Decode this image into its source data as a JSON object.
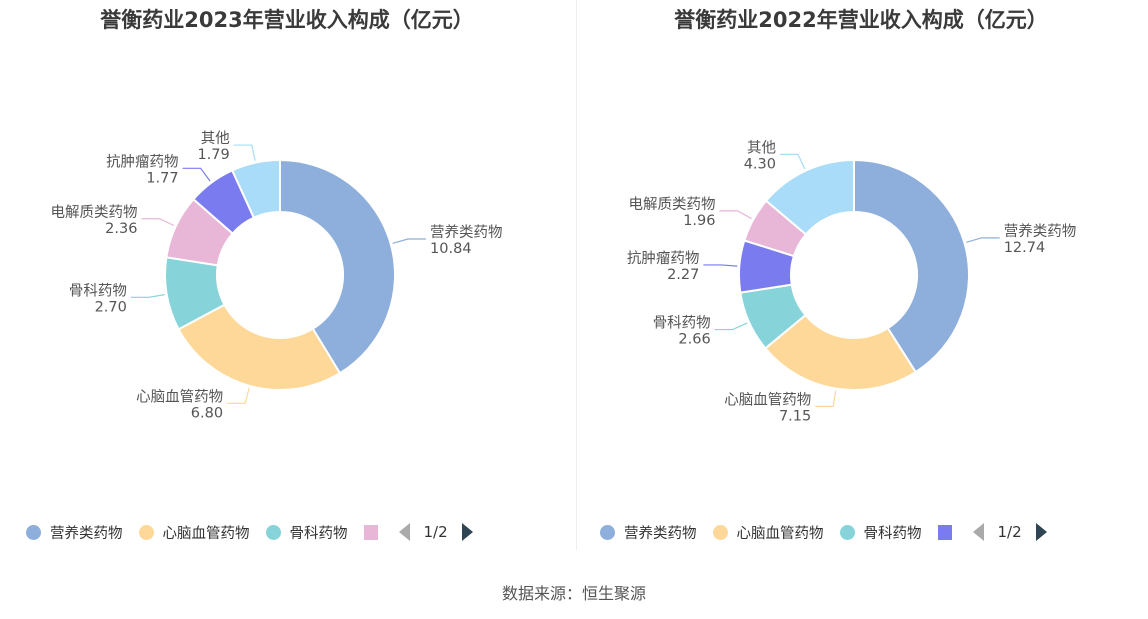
{
  "charts": [
    {
      "title": "誉衡药业2023年营业收入构成（亿元）",
      "legend_items": [
        "营养类药物",
        "心脑血管药物",
        "骨科药物"
      ],
      "legend_partial_color": "#e8b6d6",
      "legend_page": "1/2"
    },
    {
      "title": "誉衡药业2022年营业收入构成（亿元）",
      "legend_items": [
        "营养类药物",
        "心脑血管药物",
        "骨科药物"
      ],
      "legend_partial_color": "#7b7bf0",
      "legend_page": "1/2"
    }
  ],
  "source": "数据来源：恒生聚源",
  "chart_data": [
    {
      "type": "pie",
      "title": "誉衡药业2023年营业收入构成（亿元）",
      "categories": [
        "营养类药物",
        "心脑血管药物",
        "骨科药物",
        "电解质类药物",
        "抗肿瘤药物",
        "其他"
      ],
      "values": [
        10.84,
        6.8,
        2.7,
        2.36,
        1.77,
        1.79
      ],
      "labels": [
        "10.84",
        "6.80",
        "2.70",
        "2.36",
        "1.77",
        "1.79"
      ],
      "colors": [
        "#8eaedb",
        "#fdd899",
        "#86d4da",
        "#e8b6d6",
        "#7b7bf0",
        "#a8dcf8"
      ],
      "legend_position": "bottom"
    },
    {
      "type": "pie",
      "title": "誉衡药业2022年营业收入构成（亿元）",
      "categories": [
        "营养类药物",
        "心脑血管药物",
        "骨科药物",
        "抗肿瘤药物",
        "电解质类药物",
        "其他"
      ],
      "values": [
        12.74,
        7.15,
        2.66,
        2.27,
        1.96,
        4.3
      ],
      "labels": [
        "12.74",
        "7.15",
        "2.66",
        "2.27",
        "1.96",
        "4.30"
      ],
      "colors": [
        "#8eaedb",
        "#fdd899",
        "#86d4da",
        "#7b7bf0",
        "#e8b6d6",
        "#a8dcf8"
      ],
      "legend_position": "bottom"
    }
  ]
}
